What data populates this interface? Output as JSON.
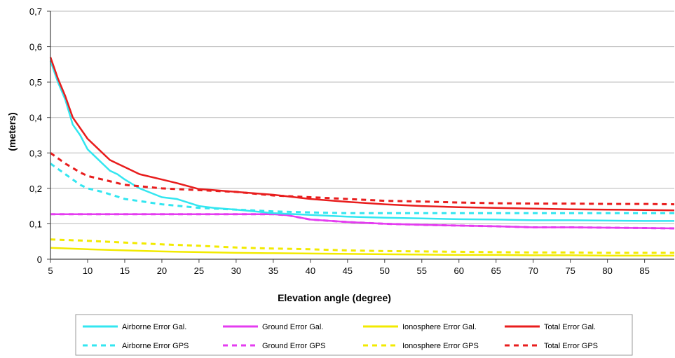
{
  "chart_data": {
    "type": "line",
    "title": "",
    "xlabel": "Elevation angle (degree)",
    "ylabel": "(meters)",
    "xlim": [
      5,
      89
    ],
    "ylim": [
      0,
      0.7
    ],
    "xticks": [
      5,
      10,
      15,
      20,
      25,
      30,
      35,
      40,
      45,
      50,
      55,
      60,
      65,
      70,
      75,
      80,
      85
    ],
    "yticks": [
      0,
      0.1,
      0.2,
      0.3,
      0.4,
      0.5,
      0.6,
      0.7
    ],
    "xtick_labels": [
      "5",
      "10",
      "15",
      "20",
      "25",
      "30",
      "35",
      "40",
      "45",
      "50",
      "55",
      "60",
      "65",
      "70",
      "75",
      "80",
      "85"
    ],
    "ytick_labels": [
      "0",
      "0,1",
      "0,2",
      "0,3",
      "0,4",
      "0,5",
      "0,6",
      "0,7"
    ],
    "grid": "horizontal",
    "legend_position": "bottom",
    "series": [
      {
        "name": "Airborne Error Gal.",
        "color": "#33e6f0",
        "style": "solid",
        "x": [
          5,
          6,
          7,
          8,
          9,
          10,
          11,
          12,
          13,
          14,
          15,
          17,
          20,
          22,
          25,
          27,
          30,
          35,
          40,
          45,
          50,
          55,
          60,
          65,
          70,
          75,
          80,
          85,
          89
        ],
        "y": [
          0.56,
          0.5,
          0.45,
          0.38,
          0.35,
          0.31,
          0.29,
          0.27,
          0.25,
          0.24,
          0.225,
          0.2,
          0.175,
          0.17,
          0.15,
          0.145,
          0.14,
          0.13,
          0.125,
          0.12,
          0.117,
          0.115,
          0.113,
          0.112,
          0.11,
          0.11,
          0.109,
          0.108,
          0.108
        ]
      },
      {
        "name": "Ground Error Gal.",
        "color": "#e43cf0",
        "style": "solid",
        "x": [
          5,
          10,
          20,
          30,
          35,
          37,
          40,
          45,
          50,
          55,
          60,
          65,
          70,
          75,
          80,
          85,
          89
        ],
        "y": [
          0.127,
          0.127,
          0.127,
          0.127,
          0.127,
          0.124,
          0.112,
          0.105,
          0.1,
          0.097,
          0.095,
          0.093,
          0.09,
          0.09,
          0.089,
          0.088,
          0.087
        ]
      },
      {
        "name": "Ionosphere Error Gal.",
        "color": "#f2ea00",
        "style": "solid",
        "x": [
          5,
          10,
          15,
          20,
          25,
          30,
          35,
          40,
          45,
          50,
          55,
          60,
          65,
          70,
          75,
          80,
          85,
          89
        ],
        "y": [
          0.032,
          0.028,
          0.025,
          0.022,
          0.02,
          0.018,
          0.017,
          0.016,
          0.015,
          0.014,
          0.013,
          0.012,
          0.012,
          0.011,
          0.011,
          0.01,
          0.01,
          0.01
        ]
      },
      {
        "name": "Total Error Gal.",
        "color": "#e81d1d",
        "style": "solid",
        "x": [
          5,
          6,
          7,
          8,
          9,
          10,
          11,
          12,
          13,
          14,
          15,
          17,
          20,
          22,
          25,
          27,
          30,
          35,
          40,
          45,
          50,
          55,
          60,
          65,
          70,
          75,
          80,
          85,
          89
        ],
        "y": [
          0.57,
          0.51,
          0.46,
          0.4,
          0.37,
          0.34,
          0.32,
          0.3,
          0.28,
          0.27,
          0.26,
          0.24,
          0.225,
          0.215,
          0.198,
          0.195,
          0.19,
          0.182,
          0.17,
          0.162,
          0.155,
          0.15,
          0.147,
          0.145,
          0.143,
          0.141,
          0.14,
          0.139,
          0.138
        ]
      },
      {
        "name": "Airborne Error GPS",
        "color": "#33e6f0",
        "style": "dashed",
        "x": [
          5,
          7,
          9,
          10,
          12,
          15,
          20,
          25,
          30,
          35,
          40,
          45,
          50,
          55,
          60,
          65,
          70,
          75,
          80,
          85,
          89
        ],
        "y": [
          0.27,
          0.24,
          0.21,
          0.2,
          0.19,
          0.17,
          0.155,
          0.145,
          0.14,
          0.135,
          0.132,
          0.13,
          0.13,
          0.13,
          0.13,
          0.13,
          0.13,
          0.13,
          0.13,
          0.13,
          0.13
        ]
      },
      {
        "name": "Ground Error GPS",
        "color": "#e43cf0",
        "style": "dashed",
        "x": [
          5,
          10,
          20,
          30,
          35,
          37,
          40,
          45,
          50,
          55,
          60,
          65,
          70,
          75,
          80,
          85,
          89
        ],
        "y": [
          0.127,
          0.127,
          0.127,
          0.127,
          0.127,
          0.124,
          0.112,
          0.105,
          0.1,
          0.097,
          0.095,
          0.093,
          0.09,
          0.09,
          0.089,
          0.088,
          0.087
        ]
      },
      {
        "name": "Ionosphere Error GPS",
        "color": "#f2ea00",
        "style": "dashed",
        "x": [
          5,
          10,
          15,
          20,
          25,
          30,
          35,
          40,
          45,
          50,
          55,
          60,
          65,
          70,
          75,
          80,
          85,
          89
        ],
        "y": [
          0.056,
          0.052,
          0.047,
          0.042,
          0.038,
          0.033,
          0.03,
          0.028,
          0.025,
          0.023,
          0.022,
          0.021,
          0.02,
          0.019,
          0.019,
          0.018,
          0.018,
          0.018
        ]
      },
      {
        "name": "Total Error GPS",
        "color": "#e81d1d",
        "style": "dashed",
        "x": [
          5,
          7,
          9,
          10,
          12,
          15,
          20,
          25,
          30,
          35,
          40,
          45,
          50,
          55,
          60,
          65,
          70,
          75,
          80,
          85,
          89
        ],
        "y": [
          0.3,
          0.27,
          0.245,
          0.235,
          0.225,
          0.21,
          0.2,
          0.195,
          0.19,
          0.18,
          0.175,
          0.17,
          0.165,
          0.163,
          0.16,
          0.158,
          0.157,
          0.157,
          0.156,
          0.156,
          0.155
        ]
      }
    ],
    "legend_order": [
      0,
      1,
      2,
      3,
      4,
      5,
      6,
      7
    ]
  }
}
